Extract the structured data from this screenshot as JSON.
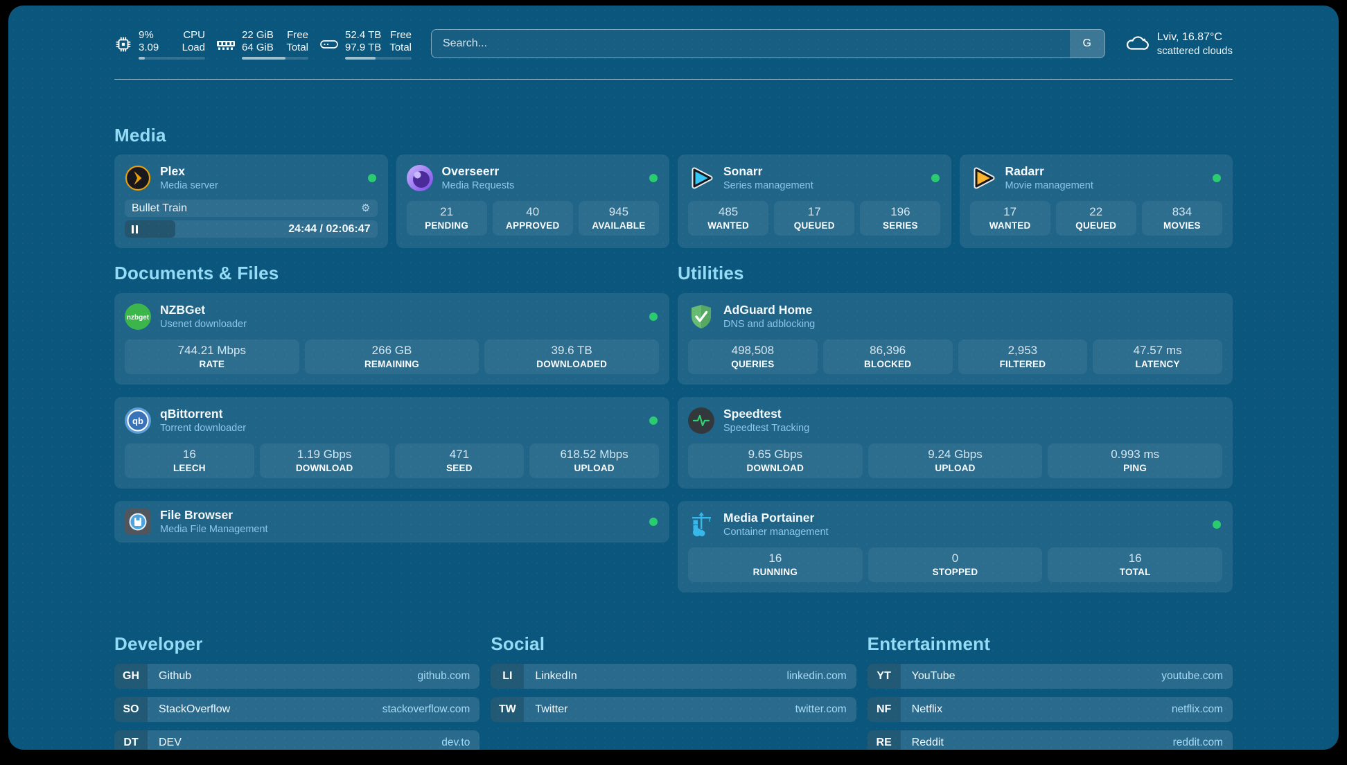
{
  "header": {
    "stats": [
      {
        "icon": "cpu-icon",
        "value_top": "9%",
        "label_top": "CPU",
        "value_bottom": "3.09",
        "label_bottom": "Load",
        "progress_pct": 9
      },
      {
        "icon": "memory-icon",
        "value_top": "22 GiB",
        "label_top": "Free",
        "value_bottom": "64 GiB",
        "label_bottom": "Total",
        "progress_pct": 66
      },
      {
        "icon": "disk-icon",
        "value_top": "52.4 TB",
        "label_top": "Free",
        "value_bottom": "97.9 TB",
        "label_bottom": "Total",
        "progress_pct": 46
      }
    ],
    "search": {
      "placeholder": "Search...",
      "button_label": "G"
    },
    "weather": {
      "location_temp": "Lviv, 16.87°C",
      "condition": "scattered clouds"
    }
  },
  "media": {
    "title": "Media",
    "plex": {
      "name": "Plex",
      "subtitle": "Media server",
      "status": "online",
      "now_playing": "Bullet Train",
      "time_display": "24:44 / 02:06:47",
      "progress_pct": 20
    },
    "overseerr": {
      "name": "Overseerr",
      "subtitle": "Media Requests",
      "status": "online",
      "stats": [
        {
          "value": "21",
          "label": "PENDING"
        },
        {
          "value": "40",
          "label": "APPROVED"
        },
        {
          "value": "945",
          "label": "AVAILABLE"
        }
      ]
    },
    "sonarr": {
      "name": "Sonarr",
      "subtitle": "Series management",
      "status": "online",
      "stats": [
        {
          "value": "485",
          "label": "WANTED"
        },
        {
          "value": "17",
          "label": "QUEUED"
        },
        {
          "value": "196",
          "label": "SERIES"
        }
      ]
    },
    "radarr": {
      "name": "Radarr",
      "subtitle": "Movie management",
      "status": "online",
      "stats": [
        {
          "value": "17",
          "label": "WANTED"
        },
        {
          "value": "22",
          "label": "QUEUED"
        },
        {
          "value": "834",
          "label": "MOVIES"
        }
      ]
    }
  },
  "documents": {
    "title": "Documents & Files",
    "nzbget": {
      "name": "NZBGet",
      "subtitle": "Usenet downloader",
      "status": "online",
      "stats": [
        {
          "value": "744.21 Mbps",
          "label": "RATE"
        },
        {
          "value": "266 GB",
          "label": "REMAINING"
        },
        {
          "value": "39.6 TB",
          "label": "DOWNLOADED"
        }
      ]
    },
    "qbittorrent": {
      "name": "qBittorrent",
      "subtitle": "Torrent downloader",
      "status": "online",
      "stats": [
        {
          "value": "16",
          "label": "LEECH"
        },
        {
          "value": "1.19 Gbps",
          "label": "DOWNLOAD"
        },
        {
          "value": "471",
          "label": "SEED"
        },
        {
          "value": "618.52 Mbps",
          "label": "UPLOAD"
        }
      ]
    },
    "filebrowser": {
      "name": "File Browser",
      "subtitle": "Media File Management",
      "status": "online"
    }
  },
  "utilities": {
    "title": "Utilities",
    "adguard": {
      "name": "AdGuard Home",
      "subtitle": "DNS and adblocking",
      "stats": [
        {
          "value": "498,508",
          "label": "QUERIES"
        },
        {
          "value": "86,396",
          "label": "BLOCKED"
        },
        {
          "value": "2,953",
          "label": "FILTERED"
        },
        {
          "value": "47.57 ms",
          "label": "LATENCY"
        }
      ]
    },
    "speedtest": {
      "name": "Speedtest",
      "subtitle": "Speedtest Tracking",
      "stats": [
        {
          "value": "9.65 Gbps",
          "label": "DOWNLOAD"
        },
        {
          "value": "9.24 Gbps",
          "label": "UPLOAD"
        },
        {
          "value": "0.993 ms",
          "label": "PING"
        }
      ]
    },
    "portainer": {
      "name": "Media Portainer",
      "subtitle": "Container management",
      "status": "online",
      "stats": [
        {
          "value": "16",
          "label": "RUNNING"
        },
        {
          "value": "0",
          "label": "STOPPED"
        },
        {
          "value": "16",
          "label": "TOTAL"
        }
      ]
    }
  },
  "bookmarks": {
    "developer": {
      "title": "Developer",
      "links": [
        {
          "abbr": "GH",
          "name": "Github",
          "url": "github.com"
        },
        {
          "abbr": "SO",
          "name": "StackOverflow",
          "url": "stackoverflow.com"
        },
        {
          "abbr": "DT",
          "name": "DEV",
          "url": "dev.to"
        }
      ]
    },
    "social": {
      "title": "Social",
      "links": [
        {
          "abbr": "LI",
          "name": "LinkedIn",
          "url": "linkedin.com"
        },
        {
          "abbr": "TW",
          "name": "Twitter",
          "url": "twitter.com"
        }
      ]
    },
    "entertainment": {
      "title": "Entertainment",
      "links": [
        {
          "abbr": "YT",
          "name": "YouTube",
          "url": "youtube.com"
        },
        {
          "abbr": "NF",
          "name": "Netflix",
          "url": "netflix.com"
        },
        {
          "abbr": "RE",
          "name": "Reddit",
          "url": "reddit.com"
        }
      ]
    }
  },
  "colors": {
    "page_bg": "#0b567c",
    "heading": "#96dbf6",
    "status_online": "#2bcb70",
    "url_text": "#a6d9f3"
  }
}
